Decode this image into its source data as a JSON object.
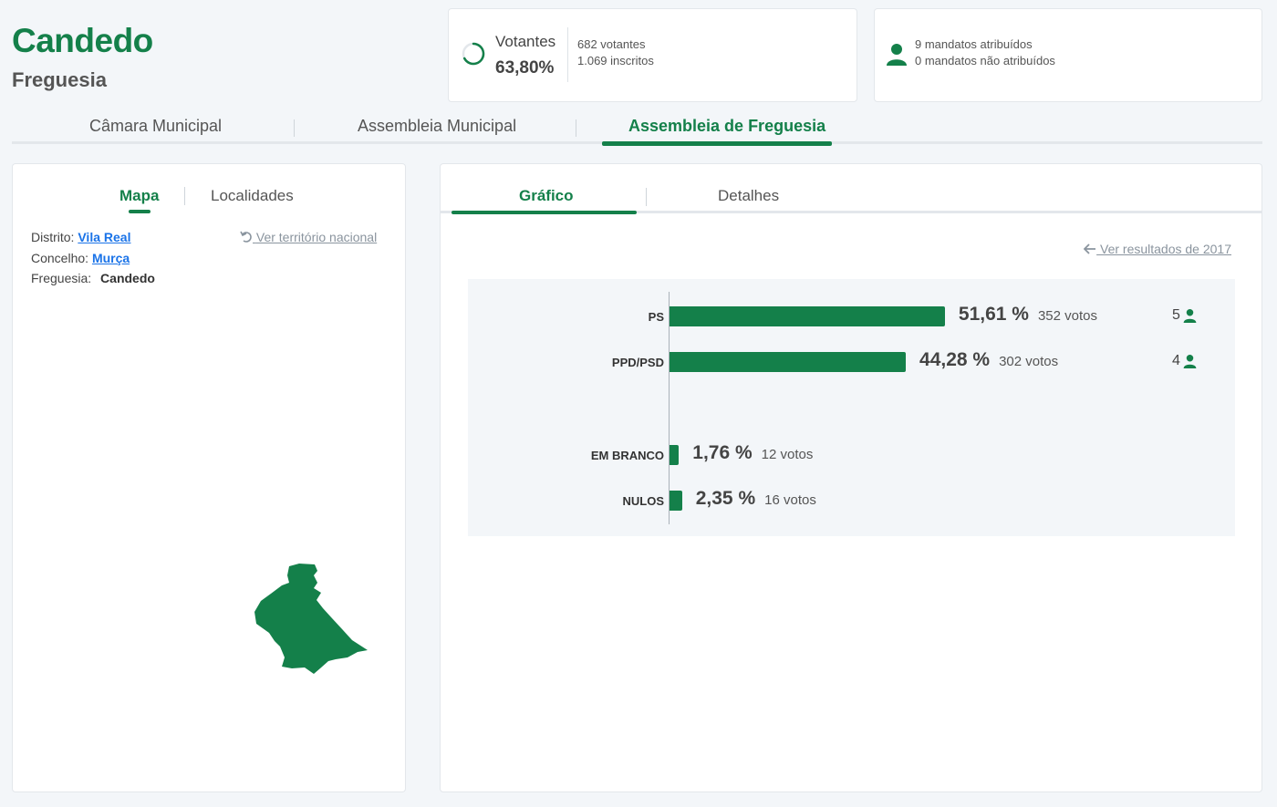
{
  "header": {
    "title": "Candedo",
    "subtitle": "Freguesia"
  },
  "votantes": {
    "label": "Votantes",
    "percent": "63,80%",
    "voters": "682 votantes",
    "registered": "1.069 inscritos"
  },
  "mandatos": {
    "assigned": "9 mandatos atribuídos",
    "unassigned": "0 mandatos não atribuídos"
  },
  "main_tabs": [
    {
      "label": "Câmara Municipal"
    },
    {
      "label": "Assembleia Municipal"
    },
    {
      "label": "Assembleia de Freguesia"
    }
  ],
  "left_tabs": [
    {
      "label": "Mapa"
    },
    {
      "label": "Localidades"
    }
  ],
  "location": {
    "district_label": "Distrito:",
    "district_value": "Vila Real",
    "council_label": "Concelho:",
    "council_value": "Murça",
    "parish_label": "Freguesia:",
    "parish_value": "Candedo",
    "national_link": "Ver território nacional"
  },
  "right_tabs": [
    {
      "label": "Gráfico"
    },
    {
      "label": "Detalhes"
    }
  ],
  "previous_results_link": "Ver resultados de 2017",
  "colors": {
    "accent": "#14804a",
    "link": "#1a73e8"
  },
  "chart_data": {
    "type": "bar",
    "orientation": "horizontal",
    "categories": [
      "PS",
      "PPD/PSD",
      "EM BRANCO",
      "NULOS"
    ],
    "values": [
      51.61,
      44.28,
      1.76,
      2.35
    ],
    "percent_labels": [
      "51,61 %",
      "44,28 %",
      "1,76 %",
      "2,35 %"
    ],
    "votes": [
      "352 votos",
      "302 votos",
      "12 votos",
      "16 votos"
    ],
    "seats": [
      "5",
      "4",
      "",
      ""
    ]
  }
}
